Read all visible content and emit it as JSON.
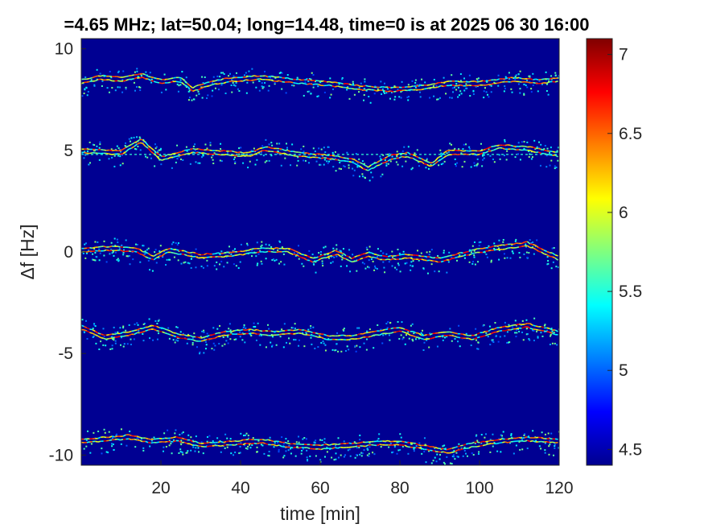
{
  "chart_data": {
    "type": "heatmap",
    "title": "=4.65 MHz;  lat=50.04; long=14.48, time=0 is at 2025 06 30 16:00",
    "xlabel": "time [min]",
    "ylabel": "Δf [Hz]",
    "xlim": [
      0,
      120
    ],
    "ylim": [
      -10.5,
      10.5
    ],
    "xticks": [
      20,
      40,
      60,
      80,
      100,
      120
    ],
    "yticks": [
      10,
      5,
      0,
      -5,
      -10
    ],
    "x_tick_labels": [
      "20",
      "40",
      "60",
      "80",
      "100",
      "120"
    ],
    "y_tick_labels": [
      "10",
      "5",
      "0",
      "-5",
      "-10"
    ],
    "colorbar": {
      "colormap": "jet",
      "clim": [
        4.4,
        7.1
      ],
      "ticks": [
        7,
        6.5,
        6,
        5.5,
        5,
        4.5
      ],
      "tick_labels": [
        "7",
        "6.5",
        "6",
        "5.5",
        "5",
        "4.5"
      ]
    },
    "background_value": 4.45,
    "traces": [
      {
        "name": "",
        "peak_value": 6.8,
        "points": [
          [
            0,
            8.3
          ],
          [
            5,
            8.5
          ],
          [
            10,
            8.4
          ],
          [
            15,
            8.6
          ],
          [
            20,
            8.3
          ],
          [
            25,
            8.4
          ],
          [
            28,
            7.9
          ],
          [
            32,
            8.2
          ],
          [
            38,
            8.4
          ],
          [
            45,
            8.5
          ],
          [
            55,
            8.3
          ],
          [
            62,
            8.2
          ],
          [
            70,
            8.0
          ],
          [
            78,
            7.9
          ],
          [
            85,
            8.0
          ],
          [
            92,
            8.2
          ],
          [
            100,
            8.2
          ],
          [
            108,
            8.4
          ],
          [
            115,
            8.3
          ],
          [
            120,
            8.4
          ]
        ]
      },
      {
        "name": "",
        "peak_value": 6.8,
        "points": [
          [
            0,
            4.9
          ],
          [
            10,
            4.8
          ],
          [
            15,
            5.4
          ],
          [
            20,
            4.5
          ],
          [
            28,
            4.9
          ],
          [
            35,
            4.8
          ],
          [
            42,
            4.7
          ],
          [
            46,
            5.0
          ],
          [
            55,
            4.7
          ],
          [
            62,
            4.6
          ],
          [
            68,
            4.4
          ],
          [
            72,
            4.0
          ],
          [
            78,
            4.6
          ],
          [
            82,
            4.7
          ],
          [
            88,
            4.2
          ],
          [
            92,
            4.8
          ],
          [
            100,
            4.8
          ],
          [
            105,
            5.1
          ],
          [
            112,
            5.0
          ],
          [
            120,
            4.7
          ]
        ]
      },
      {
        "name": "",
        "peak_value": 6.9,
        "points": [
          [
            0,
            0.0
          ],
          [
            8,
            0.1
          ],
          [
            14,
            0.0
          ],
          [
            18,
            -0.4
          ],
          [
            22,
            0.0
          ],
          [
            30,
            -0.3
          ],
          [
            38,
            -0.2
          ],
          [
            45,
            0.0
          ],
          [
            52,
            0.0
          ],
          [
            58,
            -0.5
          ],
          [
            64,
            -0.1
          ],
          [
            68,
            -0.5
          ],
          [
            72,
            -0.2
          ],
          [
            76,
            -0.4
          ],
          [
            82,
            -0.3
          ],
          [
            90,
            -0.5
          ],
          [
            98,
            -0.1
          ],
          [
            104,
            0.1
          ],
          [
            112,
            0.3
          ],
          [
            120,
            -0.4
          ]
        ]
      },
      {
        "name": "",
        "peak_value": 7.0,
        "points": [
          [
            0,
            -3.8
          ],
          [
            6,
            -4.3
          ],
          [
            12,
            -4.1
          ],
          [
            18,
            -3.8
          ],
          [
            24,
            -4.2
          ],
          [
            30,
            -4.4
          ],
          [
            36,
            -4.1
          ],
          [
            42,
            -4.0
          ],
          [
            48,
            -4.1
          ],
          [
            55,
            -4.0
          ],
          [
            62,
            -4.3
          ],
          [
            68,
            -4.3
          ],
          [
            74,
            -4.1
          ],
          [
            80,
            -3.9
          ],
          [
            86,
            -4.3
          ],
          [
            92,
            -4.1
          ],
          [
            98,
            -4.3
          ],
          [
            105,
            -3.9
          ],
          [
            112,
            -3.7
          ],
          [
            120,
            -4.1
          ]
        ]
      },
      {
        "name": "",
        "peak_value": 6.9,
        "points": [
          [
            0,
            -9.4
          ],
          [
            6,
            -9.3
          ],
          [
            12,
            -9.2
          ],
          [
            18,
            -9.4
          ],
          [
            24,
            -9.3
          ],
          [
            30,
            -9.6
          ],
          [
            38,
            -9.5
          ],
          [
            45,
            -9.4
          ],
          [
            52,
            -9.6
          ],
          [
            60,
            -9.7
          ],
          [
            68,
            -9.6
          ],
          [
            74,
            -9.5
          ],
          [
            80,
            -9.5
          ],
          [
            86,
            -9.7
          ],
          [
            92,
            -9.9
          ],
          [
            98,
            -9.6
          ],
          [
            105,
            -9.4
          ],
          [
            112,
            -9.3
          ],
          [
            120,
            -9.4
          ]
        ]
      }
    ],
    "dashed_reference_lines_y": [
      4.8
    ],
    "grid": false,
    "legend": "none"
  }
}
